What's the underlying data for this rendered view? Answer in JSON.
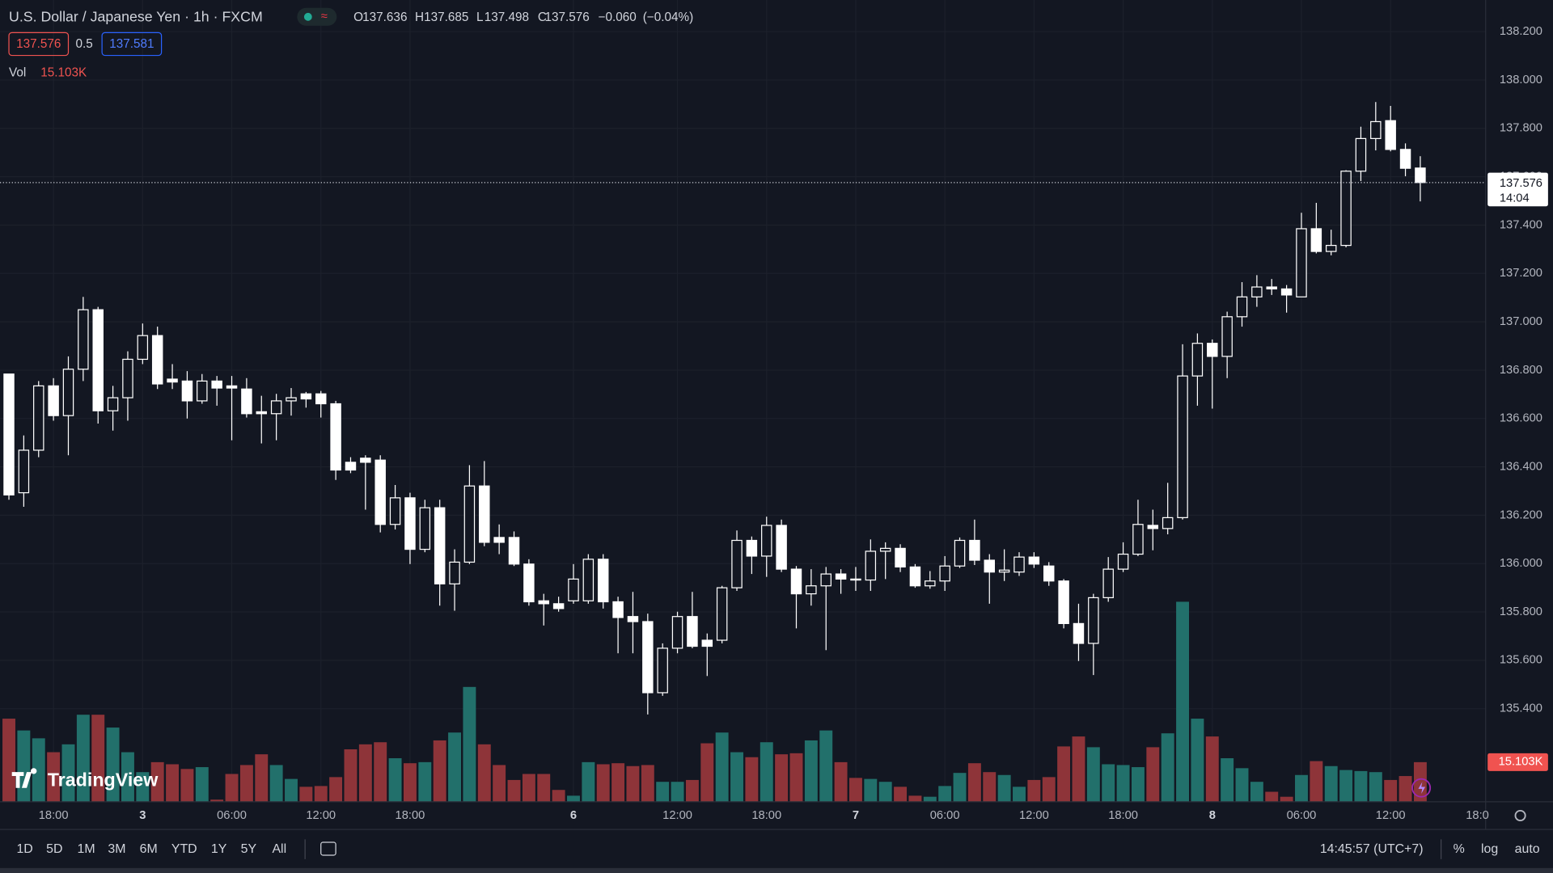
{
  "header": {
    "symbol_title": "U.S. Dollar / Japanese Yen · 1h · FXCM",
    "ohlc_prefixes": [
      "O",
      "H",
      "L",
      "C"
    ],
    "change": {
      "value": -0.06,
      "label": "−0.060"
    },
    "change_percent": {
      "value": -0.04,
      "label": "(−0.04%)"
    },
    "bid": 137.576,
    "spread": 0.5,
    "ask": 137.581,
    "volume_title": "Vol"
  },
  "chart_data": {
    "type": "candlestick",
    "candle_color": "#ffffff",
    "candle_style": "hollow",
    "grid": true,
    "categories": [
      null,
      null,
      null,
      "18:00",
      null,
      null,
      null,
      null,
      null,
      "3",
      null,
      null,
      null,
      null,
      null,
      "06:00",
      null,
      null,
      null,
      null,
      null,
      "12:00",
      null,
      null,
      null,
      null,
      null,
      "18:00",
      null,
      null,
      null,
      null,
      null,
      null,
      null,
      null,
      null,
      null,
      "6",
      null,
      null,
      null,
      null,
      null,
      null,
      "12:00",
      null,
      null,
      null,
      null,
      null,
      "18:00",
      null,
      null,
      null,
      null,
      null,
      "7",
      null,
      null,
      null,
      null,
      null,
      "06:00",
      null,
      null,
      null,
      null,
      null,
      "12:00",
      null,
      null,
      null,
      null,
      null,
      "18:00",
      null,
      null,
      null,
      null,
      null,
      "8",
      null,
      null,
      null,
      null,
      null,
      "06:00",
      null,
      null,
      null,
      null,
      null,
      "12:00",
      null,
      null
    ],
    "open": [
      136.784,
      136.293,
      136.469,
      136.735,
      136.612,
      136.804,
      137.05,
      136.632,
      136.686,
      136.845,
      136.943,
      136.763,
      136.755,
      136.673,
      136.755,
      136.735,
      136.722,
      136.628,
      136.62,
      136.673,
      136.702,
      136.702,
      136.661,
      136.419,
      136.436,
      136.428,
      136.162,
      136.272,
      136.059,
      136.231,
      135.916,
      136.006,
      136.321,
      136.108,
      136.108,
      135.998,
      135.846,
      135.834,
      135.846,
      135.846,
      136.018,
      135.842,
      135.781,
      135.76,
      135.466,
      135.65,
      135.781,
      135.683,
      135.683,
      135.9,
      136.096,
      136.031,
      136.158,
      135.977,
      135.875,
      135.908,
      135.957,
      135.936,
      135.932,
      136.051,
      136.063,
      135.986,
      135.908,
      135.928,
      135.99,
      136.096,
      136.014,
      135.965,
      135.965,
      136.027,
      135.99,
      135.928,
      135.752,
      135.67,
      135.859,
      135.977,
      136.039,
      136.158,
      136.145,
      136.19,
      136.776,
      136.911,
      136.857,
      137.021,
      137.103,
      137.144,
      137.136,
      137.103,
      137.385,
      137.291,
      137.316,
      137.623,
      137.758,
      137.832,
      137.713,
      137.636
    ],
    "high": [
      136.784,
      136.53,
      136.755,
      136.767,
      136.857,
      137.103,
      137.062,
      136.735,
      136.878,
      136.993,
      136.98,
      136.825,
      136.796,
      136.784,
      136.776,
      136.776,
      136.767,
      136.694,
      136.702,
      136.726,
      136.71,
      136.714,
      136.673,
      136.44,
      136.448,
      136.448,
      136.325,
      136.293,
      136.264,
      136.264,
      136.059,
      136.407,
      136.424,
      136.162,
      136.133,
      136.018,
      135.875,
      135.863,
      135.998,
      136.039,
      136.039,
      135.863,
      135.883,
      135.793,
      135.67,
      135.801,
      135.883,
      135.711,
      135.908,
      136.137,
      136.112,
      136.194,
      136.182,
      135.99,
      135.977,
      135.986,
      135.977,
      135.986,
      136.1,
      136.088,
      136.08,
      135.998,
      135.969,
      136.031,
      136.108,
      136.182,
      136.039,
      136.059,
      136.047,
      136.047,
      136.006,
      135.936,
      135.834,
      135.875,
      136.027,
      136.088,
      136.264,
      136.223,
      136.334,
      136.907,
      136.952,
      136.927,
      137.042,
      137.164,
      137.193,
      137.177,
      137.152,
      137.451,
      137.492,
      137.381,
      137.627,
      137.807,
      137.909,
      137.893,
      137.738,
      137.685
    ],
    "low": [
      136.264,
      136.235,
      136.44,
      136.591,
      136.448,
      136.755,
      136.579,
      136.55,
      136.591,
      136.825,
      136.722,
      136.722,
      136.6,
      136.661,
      136.653,
      136.51,
      136.604,
      136.497,
      136.51,
      136.612,
      136.645,
      136.604,
      136.346,
      136.374,
      136.223,
      136.129,
      136.141,
      135.998,
      136.047,
      135.826,
      135.805,
      135.998,
      136.072,
      136.039,
      135.99,
      135.826,
      135.744,
      135.801,
      135.834,
      135.834,
      135.814,
      135.629,
      135.629,
      135.376,
      135.453,
      135.629,
      135.65,
      135.535,
      135.67,
      135.887,
      135.957,
      135.945,
      135.965,
      135.732,
      135.826,
      135.642,
      135.875,
      135.887,
      135.887,
      135.936,
      135.965,
      135.9,
      135.896,
      135.887,
      135.982,
      135.994,
      135.834,
      135.928,
      135.949,
      135.982,
      135.908,
      135.732,
      135.597,
      135.539,
      135.842,
      135.965,
      136.031,
      136.055,
      136.121,
      136.182,
      136.653,
      136.641,
      136.767,
      136.98,
      137.062,
      137.111,
      137.038,
      137.103,
      137.283,
      137.275,
      137.308,
      137.582,
      137.709,
      137.705,
      137.602,
      137.498
    ],
    "close": [
      136.284,
      136.469,
      136.735,
      136.612,
      136.804,
      137.05,
      136.632,
      136.686,
      136.845,
      136.943,
      136.743,
      136.751,
      136.673,
      136.755,
      136.726,
      136.726,
      136.62,
      136.62,
      136.673,
      136.686,
      136.681,
      136.661,
      136.387,
      136.387,
      136.419,
      136.162,
      136.272,
      136.059,
      136.231,
      135.916,
      136.006,
      136.321,
      136.088,
      136.088,
      135.998,
      135.842,
      135.834,
      135.814,
      135.936,
      136.018,
      135.842,
      135.777,
      135.76,
      135.466,
      135.65,
      135.781,
      135.658,
      135.658,
      135.9,
      136.096,
      136.031,
      136.158,
      135.977,
      135.875,
      135.908,
      135.957,
      135.936,
      135.932,
      136.051,
      136.063,
      135.986,
      135.908,
      135.928,
      135.99,
      136.096,
      136.014,
      135.965,
      135.973,
      136.027,
      135.998,
      135.928,
      135.752,
      135.67,
      135.859,
      135.977,
      136.039,
      136.162,
      136.145,
      136.19,
      136.776,
      136.911,
      136.857,
      137.021,
      137.103,
      137.144,
      137.136,
      137.111,
      137.385,
      137.291,
      137.316,
      137.623,
      137.758,
      137.828,
      137.713,
      137.635,
      137.576
    ],
    "volume": [
      31.7,
      27.2,
      24.2,
      18.9,
      21.9,
      33.2,
      33.2,
      28.3,
      18.9,
      11.3,
      15.1,
      14.3,
      12.5,
      13.2,
      0.8,
      10.6,
      14.0,
      18.1,
      14.0,
      8.7,
      5.7,
      6.0,
      9.4,
      20.0,
      21.9,
      22.7,
      16.6,
      14.7,
      15.1,
      23.4,
      26.4,
      43.8,
      21.9,
      14.0,
      8.3,
      10.6,
      10.6,
      4.5,
      2.3,
      15.1,
      14.3,
      14.7,
      13.6,
      14.0,
      7.6,
      7.6,
      8.3,
      22.3,
      26.4,
      18.9,
      17.0,
      22.7,
      18.1,
      18.5,
      23.4,
      27.2,
      15.1,
      9.1,
      8.7,
      7.6,
      5.7,
      2.3,
      1.9,
      6.0,
      11.0,
      14.7,
      11.3,
      10.2,
      5.7,
      8.3,
      9.4,
      21.1,
      24.9,
      20.8,
      14.3,
      14.0,
      13.2,
      20.8,
      26.1,
      76.3,
      31.7,
      24.9,
      16.6,
      12.8,
      7.6,
      3.8,
      1.9,
      10.2,
      15.5,
      13.6,
      12.1,
      11.7,
      11.3,
      8.3,
      9.8,
      15.103
    ],
    "last_volume_label": "15.103K",
    "volume_up_color": "#22706b",
    "volume_down_color": "#8e3439",
    "volume_tag_color": "#f05350",
    "volume_ylim": [
      0,
      100
    ],
    "ylim": [
      135.015,
      138.331
    ],
    "yticks": [
      {
        "value": 135.4,
        "label": "135.400"
      },
      {
        "value": 135.6,
        "label": "135.600"
      },
      {
        "value": 135.8,
        "label": "135.800"
      },
      {
        "value": 136.0,
        "label": "136.000"
      },
      {
        "value": 136.2,
        "label": "136.200"
      },
      {
        "value": 136.4,
        "label": "136.400"
      },
      {
        "value": 136.6,
        "label": "136.600"
      },
      {
        "value": 136.8,
        "label": "136.800"
      },
      {
        "value": 137.0,
        "label": "137.000"
      },
      {
        "value": 137.2,
        "label": "137.200"
      },
      {
        "value": 137.4,
        "label": "137.400"
      },
      {
        "value": 137.6,
        "label": "137.600"
      },
      {
        "value": 137.8,
        "label": "137.800"
      },
      {
        "value": 138.0,
        "label": "138.000"
      },
      {
        "value": 138.2,
        "label": "138.200"
      }
    ],
    "bar_countdown": "14:04",
    "truncated_time_label": "18:0"
  },
  "ui": {
    "logo": "TradingView",
    "timeframes": [
      "1D",
      "5D",
      "1M",
      "3M",
      "6M",
      "YTD",
      "1Y",
      "5Y",
      "All"
    ],
    "clock": "14:45:57 (UTC+7)",
    "scale_options": [
      "%",
      "log",
      "auto"
    ]
  }
}
